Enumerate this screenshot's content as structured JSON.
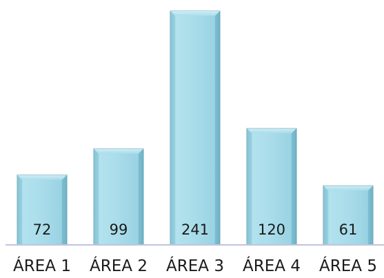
{
  "chart_data": {
    "type": "bar",
    "categories": [
      "ÁREA 1",
      "ÁREA 2",
      "ÁREA 3",
      "ÁREA 4",
      "ÁREA 5"
    ],
    "values": [
      72,
      99,
      241,
      120,
      61
    ],
    "title": "",
    "xlabel": "",
    "ylabel": "",
    "ylim": [
      0,
      241
    ],
    "grid": false,
    "legend": "none",
    "data_labels": "inside-bottom",
    "colors": {
      "bar_fill": "#a9dcea",
      "bar_shade": "#6fb3c8",
      "bar_edge": "#4f8fa3",
      "baseline": "#c0c4dc"
    }
  }
}
